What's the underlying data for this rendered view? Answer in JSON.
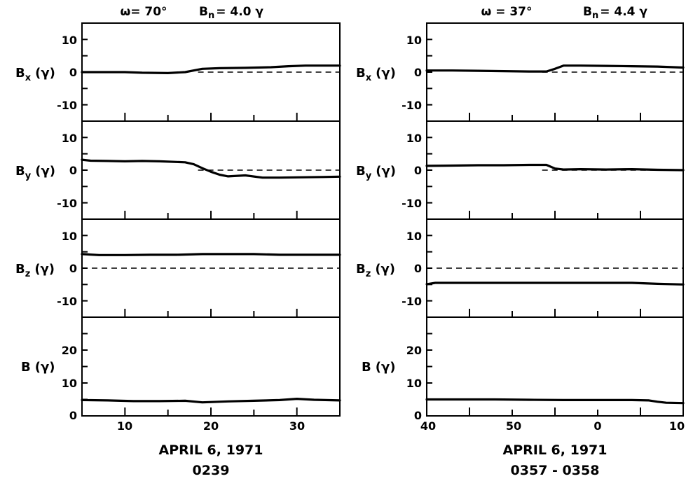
{
  "chart_data": [
    {
      "type": "line",
      "panel_group": "left",
      "header": {
        "omega": "ω= 70°",
        "bn_base": "B",
        "bn_sub": "n",
        "bn_rest": "= 4.0 γ"
      },
      "footer": {
        "date": "APRIL 6, 1971",
        "time": "0239"
      },
      "x_ticks": [
        "10",
        "20",
        "30"
      ],
      "xlim": [
        5,
        35
      ],
      "panels": [
        {
          "id": "bx",
          "ylabel_base": "B",
          "ylabel_sub": "x",
          "ylabel_unit": "(γ)",
          "ylim": [
            -15,
            15
          ],
          "yticks": [
            "10",
            "0",
            "-10"
          ],
          "zero_line": true,
          "x": [
            5,
            8,
            10,
            12,
            15,
            17,
            19,
            21,
            24,
            27,
            29,
            31,
            33,
            35
          ],
          "y": [
            0,
            0,
            0,
            -0.2,
            -0.3,
            0,
            1,
            1.2,
            1.3,
            1.5,
            1.8,
            2,
            2,
            2
          ]
        },
        {
          "id": "by",
          "ylabel_base": "B",
          "ylabel_sub": "y",
          "ylabel_unit": "(γ)",
          "ylim": [
            -15,
            15
          ],
          "yticks": [
            "10",
            "0",
            "-10"
          ],
          "zero_line": true,
          "x": [
            5,
            6,
            8,
            10,
            12,
            14,
            17,
            18,
            19,
            20,
            21,
            22,
            24,
            26,
            28,
            30,
            33,
            35
          ],
          "y": [
            3.2,
            2.9,
            2.8,
            2.7,
            2.8,
            2.7,
            2.4,
            1.8,
            0.6,
            -0.5,
            -1.4,
            -1.9,
            -1.6,
            -2.3,
            -2.3,
            -2.2,
            -2.1,
            -2.0
          ]
        },
        {
          "id": "bz",
          "ylabel_base": "B",
          "ylabel_sub": "z",
          "ylabel_unit": "(γ)",
          "ylim": [
            -15,
            15
          ],
          "yticks": [
            "10",
            "0",
            "-10"
          ],
          "zero_line": true,
          "x": [
            5,
            7,
            10,
            13,
            16,
            19,
            22,
            25,
            28,
            31,
            35
          ],
          "y": [
            4.3,
            4,
            4,
            4.1,
            4.1,
            4.3,
            4.3,
            4.3,
            4.1,
            4.1,
            4.1
          ]
        },
        {
          "id": "b",
          "ylabel_base": "B",
          "ylabel_sub": "",
          "ylabel_unit": "(γ)",
          "ylim": [
            0,
            30
          ],
          "yticks": [
            "20",
            "10",
            "0"
          ],
          "zero_line": false,
          "x": [
            5,
            8,
            11,
            14,
            17,
            19,
            22,
            25,
            28,
            30,
            32,
            35
          ],
          "y": [
            4.8,
            4.7,
            4.5,
            4.5,
            4.6,
            4.1,
            4.4,
            4.6,
            4.8,
            5.2,
            4.9,
            4.7
          ]
        }
      ]
    },
    {
      "type": "line",
      "panel_group": "right",
      "header": {
        "omega": "ω = 37°",
        "bn_base": "B",
        "bn_sub": "n",
        "bn_rest": "= 4.4 γ"
      },
      "footer": {
        "date": "APRIL 6, 1971",
        "time": "0357 - 0358"
      },
      "x_ticks": [
        "40",
        "50",
        "0",
        "10"
      ],
      "xlim": [
        40,
        70
      ],
      "panels": [
        {
          "id": "bx",
          "ylabel_base": "B",
          "ylabel_sub": "x",
          "ylabel_unit": "(γ)",
          "ylim": [
            -15,
            15
          ],
          "yticks": [
            "10",
            "0",
            "-10"
          ],
          "zero_line": true,
          "x": [
            40,
            43,
            46,
            49,
            52,
            54,
            55,
            56,
            58,
            61,
            64,
            67,
            70
          ],
          "y": [
            0.5,
            0.5,
            0.4,
            0.3,
            0.2,
            0.2,
            1,
            2,
            2,
            1.9,
            1.8,
            1.7,
            1.4
          ]
        },
        {
          "id": "by",
          "ylabel_base": "B",
          "ylabel_sub": "y",
          "ylabel_unit": "(γ)",
          "ylim": [
            -15,
            15
          ],
          "yticks": [
            "10",
            "0",
            "-10"
          ],
          "zero_line": true,
          "x": [
            40,
            43,
            46,
            49,
            52,
            54,
            55,
            56,
            58,
            61,
            64,
            67,
            70
          ],
          "y": [
            1.3,
            1.4,
            1.5,
            1.5,
            1.6,
            1.6,
            0.5,
            0.2,
            0.3,
            0.2,
            0.3,
            0.1,
            0
          ]
        },
        {
          "id": "bz",
          "ylabel_base": "B",
          "ylabel_sub": "z",
          "ylabel_unit": "(γ)",
          "ylim": [
            -15,
            15
          ],
          "yticks": [
            "10",
            "0",
            "-10"
          ],
          "zero_line": true,
          "x": [
            40,
            41,
            44,
            48,
            52,
            56,
            60,
            64,
            67,
            70
          ],
          "y": [
            -4.9,
            -4.5,
            -4.5,
            -4.5,
            -4.5,
            -4.5,
            -4.5,
            -4.5,
            -4.8,
            -5
          ]
        },
        {
          "id": "b",
          "ylabel_base": "B",
          "ylabel_sub": "",
          "ylabel_unit": "(γ)",
          "ylim": [
            0,
            30
          ],
          "yticks": [
            "20",
            "10",
            "0"
          ],
          "zero_line": false,
          "x": [
            40,
            44,
            48,
            52,
            56,
            60,
            64,
            66,
            67,
            68,
            70
          ],
          "y": [
            5,
            5,
            5,
            4.9,
            4.8,
            4.8,
            4.8,
            4.7,
            4.3,
            4,
            3.9
          ]
        }
      ]
    }
  ]
}
